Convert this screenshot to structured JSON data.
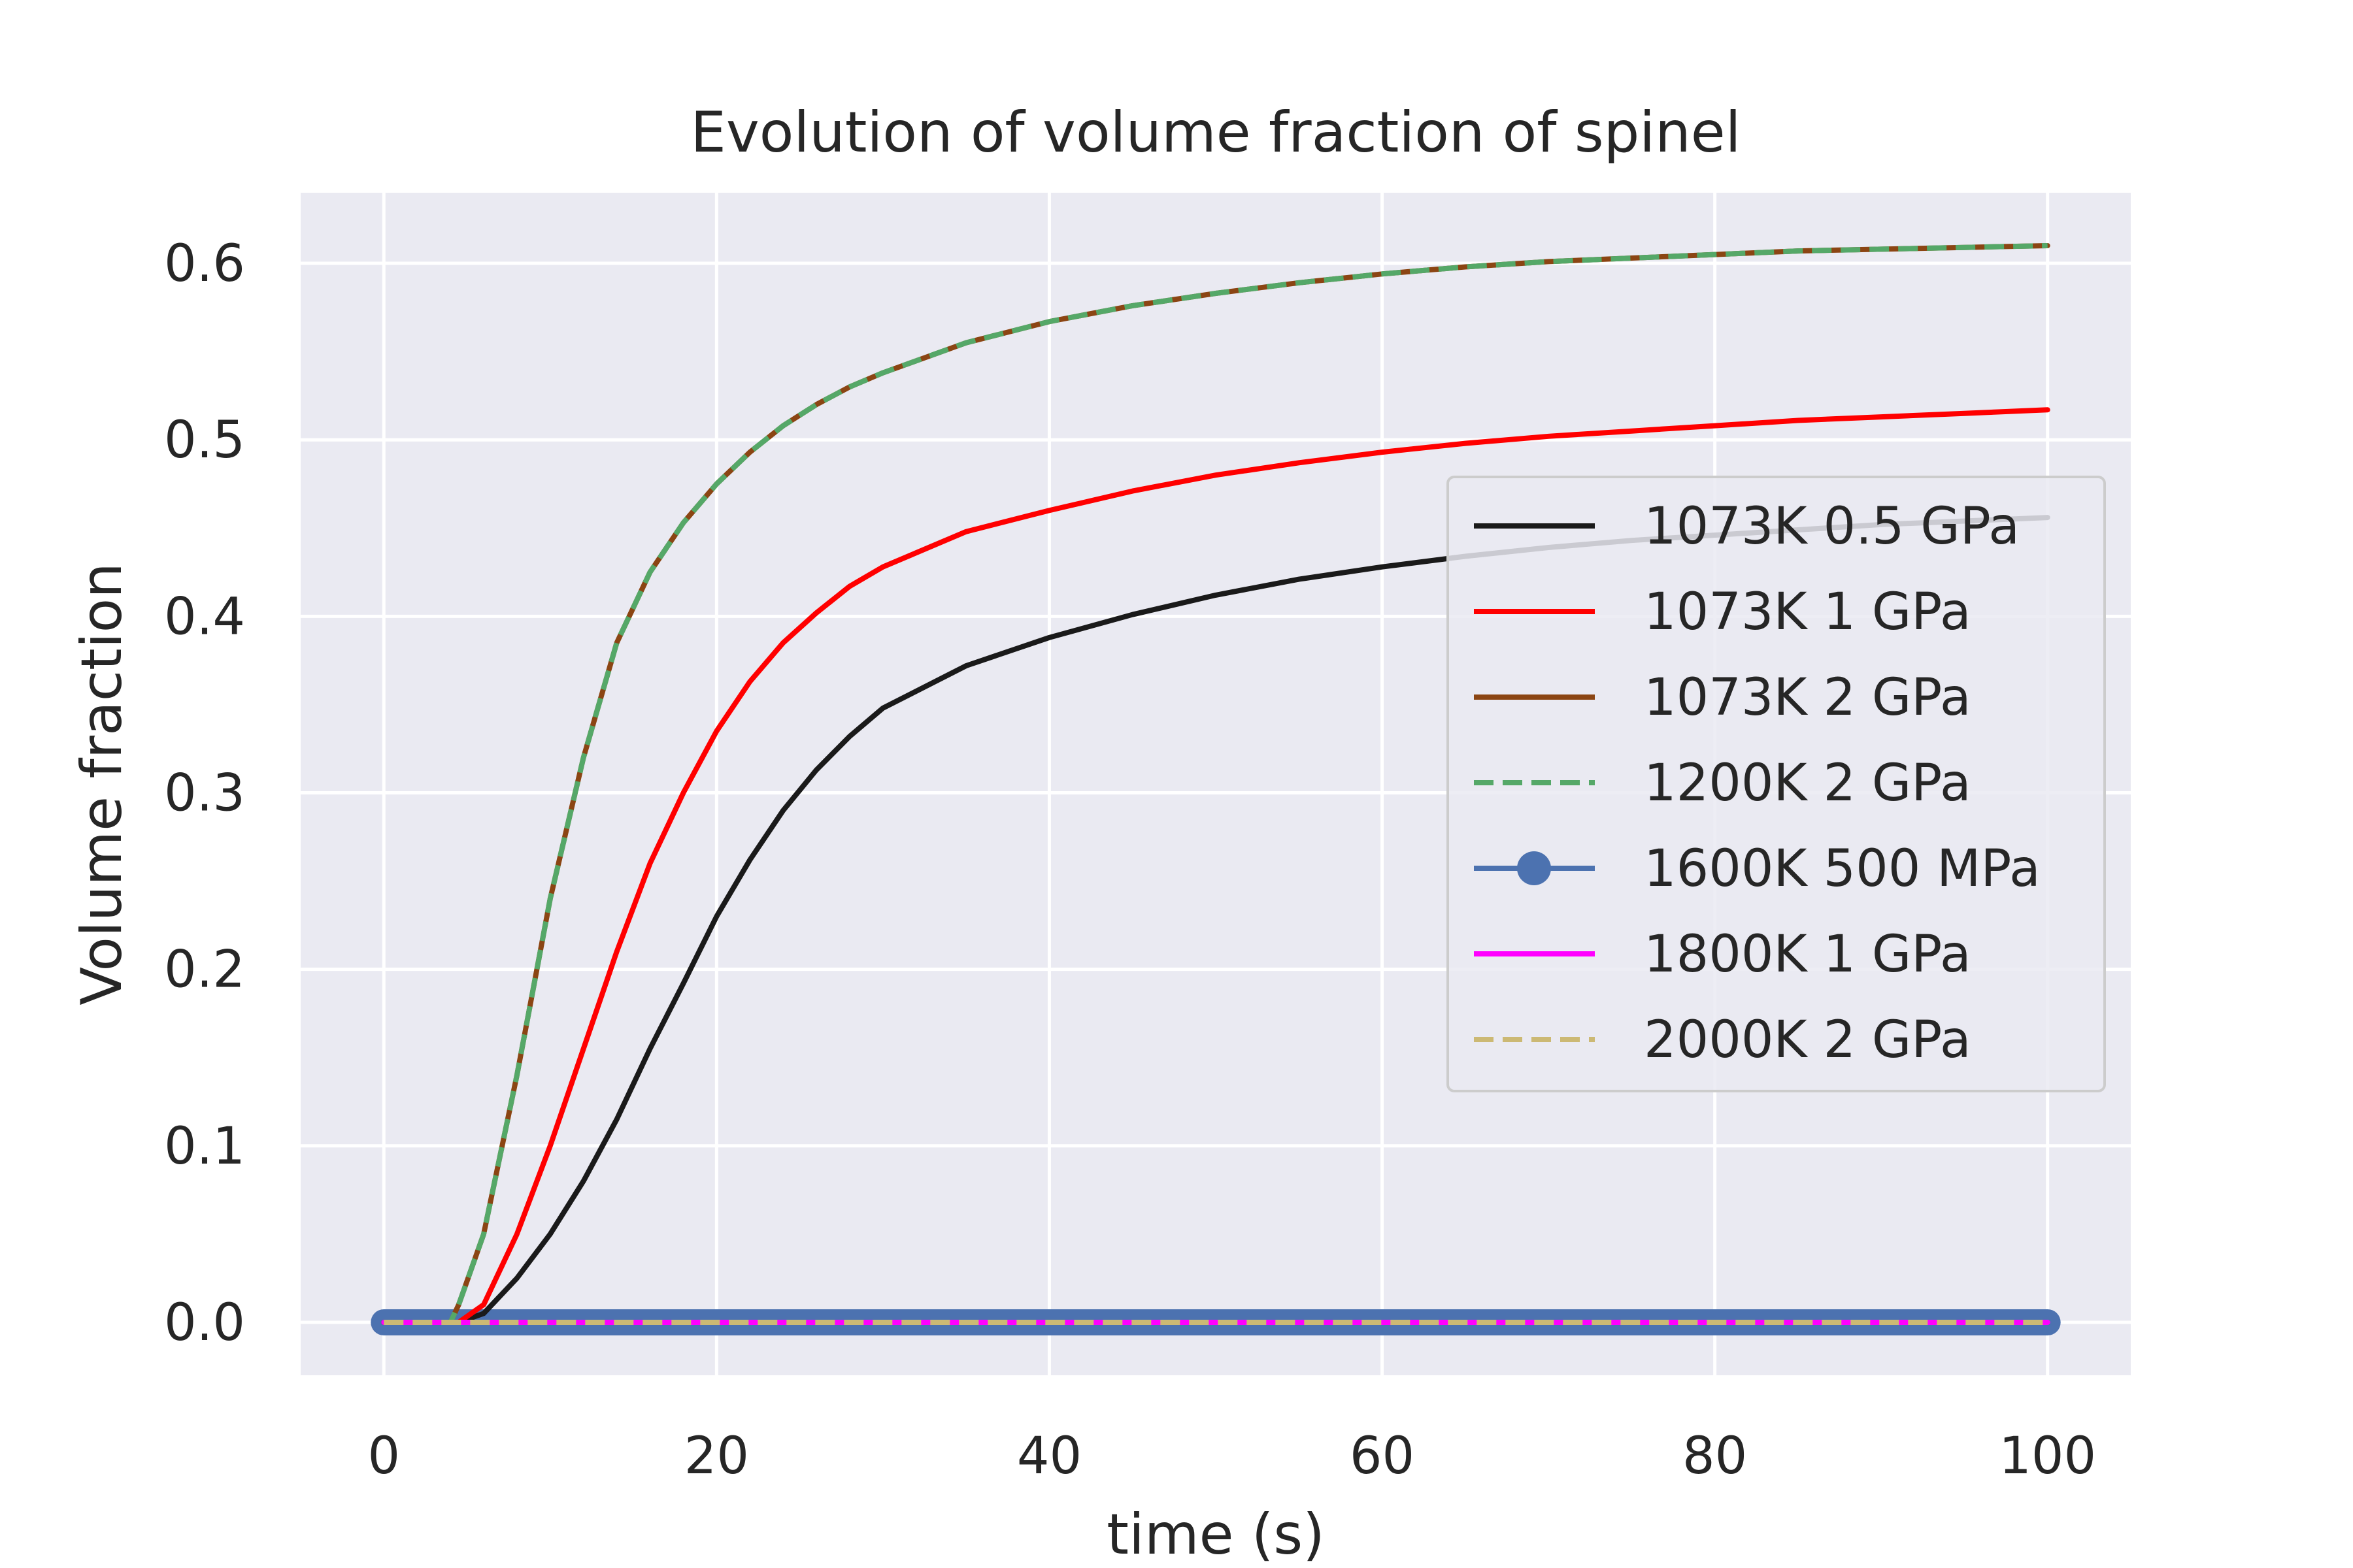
{
  "chart_data": {
    "type": "line",
    "title": "Evolution of volume fraction of spinel",
    "xlabel": "time (s)",
    "ylabel": "Volume fraction",
    "xlim": [
      -5,
      105
    ],
    "ylim": [
      -0.03,
      0.64
    ],
    "xticks": [
      0,
      20,
      40,
      60,
      80,
      100
    ],
    "xtick_labels": [
      "0",
      "20",
      "40",
      "60",
      "80",
      "100"
    ],
    "yticks": [
      0.0,
      0.1,
      0.2,
      0.3,
      0.4,
      0.5,
      0.6
    ],
    "ytick_labels": [
      "0.0",
      "0.1",
      "0.2",
      "0.3",
      "0.4",
      "0.5",
      "0.6"
    ],
    "grid": true,
    "legend_position": "center-right",
    "x": [
      0,
      2,
      4,
      4.5,
      6,
      8,
      10,
      12,
      14,
      16,
      18,
      20,
      22,
      24,
      26,
      28,
      30,
      35,
      40,
      45,
      50,
      55,
      60,
      65,
      70,
      75,
      80,
      85,
      90,
      95,
      100
    ],
    "series": [
      {
        "name": "1073K 0.5 GPa",
        "color": "#1a1a1a",
        "style": "solid",
        "values": [
          0.0,
          0.0,
          0.0,
          0.0,
          0.005,
          0.025,
          0.05,
          0.08,
          0.115,
          0.155,
          0.192,
          0.23,
          0.262,
          0.29,
          0.313,
          0.332,
          0.348,
          0.372,
          0.388,
          0.401,
          0.412,
          0.421,
          0.428,
          0.434,
          0.439,
          0.443,
          0.446,
          0.449,
          0.452,
          0.454,
          0.456
        ]
      },
      {
        "name": "1073K 1 GPa",
        "color": "#ff0000",
        "style": "solid",
        "values": [
          0.0,
          0.0,
          0.0,
          0.0,
          0.01,
          0.05,
          0.1,
          0.155,
          0.21,
          0.26,
          0.3,
          0.335,
          0.363,
          0.385,
          0.402,
          0.417,
          0.428,
          0.448,
          0.46,
          0.471,
          0.48,
          0.487,
          0.493,
          0.498,
          0.502,
          0.505,
          0.508,
          0.511,
          0.513,
          0.515,
          0.517
        ]
      },
      {
        "name": "1073K 2 GPa",
        "color": "#8b4513",
        "style": "solid",
        "values": [
          0.0,
          0.0,
          0.0,
          0.01,
          0.05,
          0.14,
          0.24,
          0.32,
          0.385,
          0.425,
          0.453,
          0.475,
          0.493,
          0.508,
          0.52,
          0.53,
          0.538,
          0.555,
          0.567,
          0.576,
          0.583,
          0.589,
          0.594,
          0.598,
          0.601,
          0.603,
          0.605,
          0.607,
          0.608,
          0.609,
          0.61
        ]
      },
      {
        "name": "1200K 2 GPa",
        "color": "#55a868",
        "style": "dashed",
        "values": [
          0.0,
          0.0,
          0.0,
          0.01,
          0.05,
          0.14,
          0.24,
          0.32,
          0.385,
          0.425,
          0.453,
          0.475,
          0.493,
          0.508,
          0.52,
          0.53,
          0.538,
          0.555,
          0.567,
          0.576,
          0.583,
          0.589,
          0.594,
          0.598,
          0.601,
          0.603,
          0.605,
          0.607,
          0.608,
          0.609,
          0.61
        ]
      },
      {
        "name": "1600K 500 MPa",
        "color": "#4c72b0",
        "style": "solid-marker",
        "values": [
          0,
          0,
          0,
          0,
          0,
          0,
          0,
          0,
          0,
          0,
          0,
          0,
          0,
          0,
          0,
          0,
          0,
          0,
          0,
          0,
          0,
          0,
          0,
          0,
          0,
          0,
          0,
          0,
          0,
          0,
          0
        ]
      },
      {
        "name": "1800K 1 GPa",
        "color": "#ff00ff",
        "style": "solid",
        "values": [
          0,
          0,
          0,
          0,
          0,
          0,
          0,
          0,
          0,
          0,
          0,
          0,
          0,
          0,
          0,
          0,
          0,
          0,
          0,
          0,
          0,
          0,
          0,
          0,
          0,
          0,
          0,
          0,
          0,
          0,
          0
        ]
      },
      {
        "name": "2000K 2 GPa",
        "color": "#ccb974",
        "style": "dashed",
        "values": [
          0,
          0,
          0,
          0,
          0,
          0,
          0,
          0,
          0,
          0,
          0,
          0,
          0,
          0,
          0,
          0,
          0,
          0,
          0,
          0,
          0,
          0,
          0,
          0,
          0,
          0,
          0,
          0,
          0,
          0,
          0
        ]
      }
    ]
  }
}
